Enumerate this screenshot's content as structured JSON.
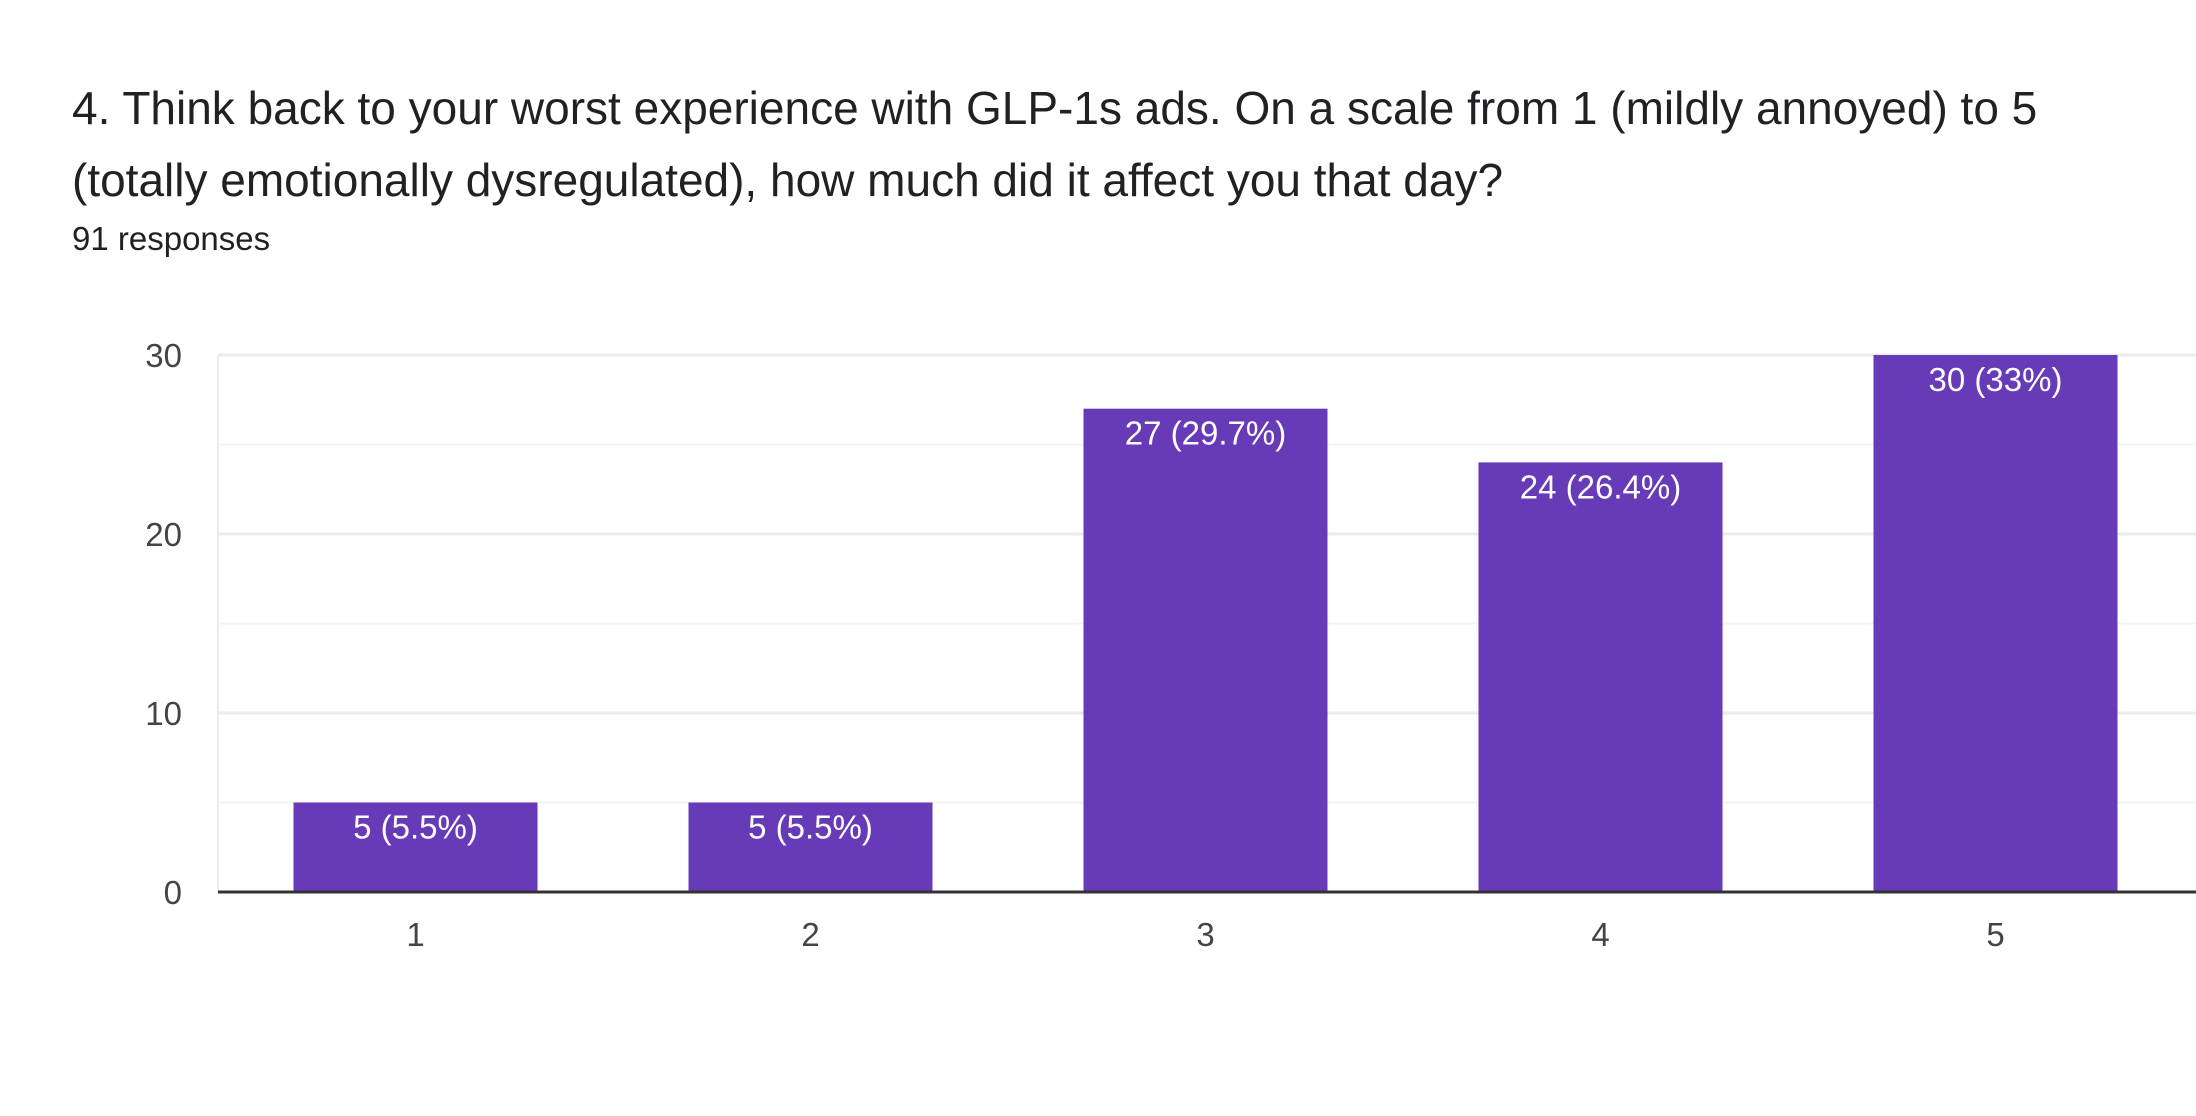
{
  "question": {
    "title": "4. Think back to your worst experience with GLP-1s ads. On a scale from 1 (mildly annoyed) to 5 (totally emotionally dysregulated), how much did it affect you that day?",
    "responses": "91 responses"
  },
  "colors": {
    "bar": "#673ab7",
    "grid": "#ebebeb",
    "minor_grid": "#f3f3f3",
    "axis": "#333333",
    "tick_text": "#444444",
    "bar_label_text": "#ffffff"
  },
  "chart_data": {
    "type": "bar",
    "title": "",
    "xlabel": "",
    "ylabel": "",
    "categories": [
      "1",
      "2",
      "3",
      "4",
      "5"
    ],
    "values": [
      5,
      5,
      27,
      24,
      30
    ],
    "data_labels": [
      "5 (5.5%)",
      "5 (5.5%)",
      "27 (29.7%)",
      "24 (26.4%)",
      "30 (33%)"
    ],
    "ylim": [
      0,
      30
    ],
    "yticks": [
      0,
      10,
      20,
      30
    ],
    "ytick_labels": [
      "0",
      "10",
      "20",
      "30"
    ],
    "grid": true,
    "legend": "none"
  }
}
